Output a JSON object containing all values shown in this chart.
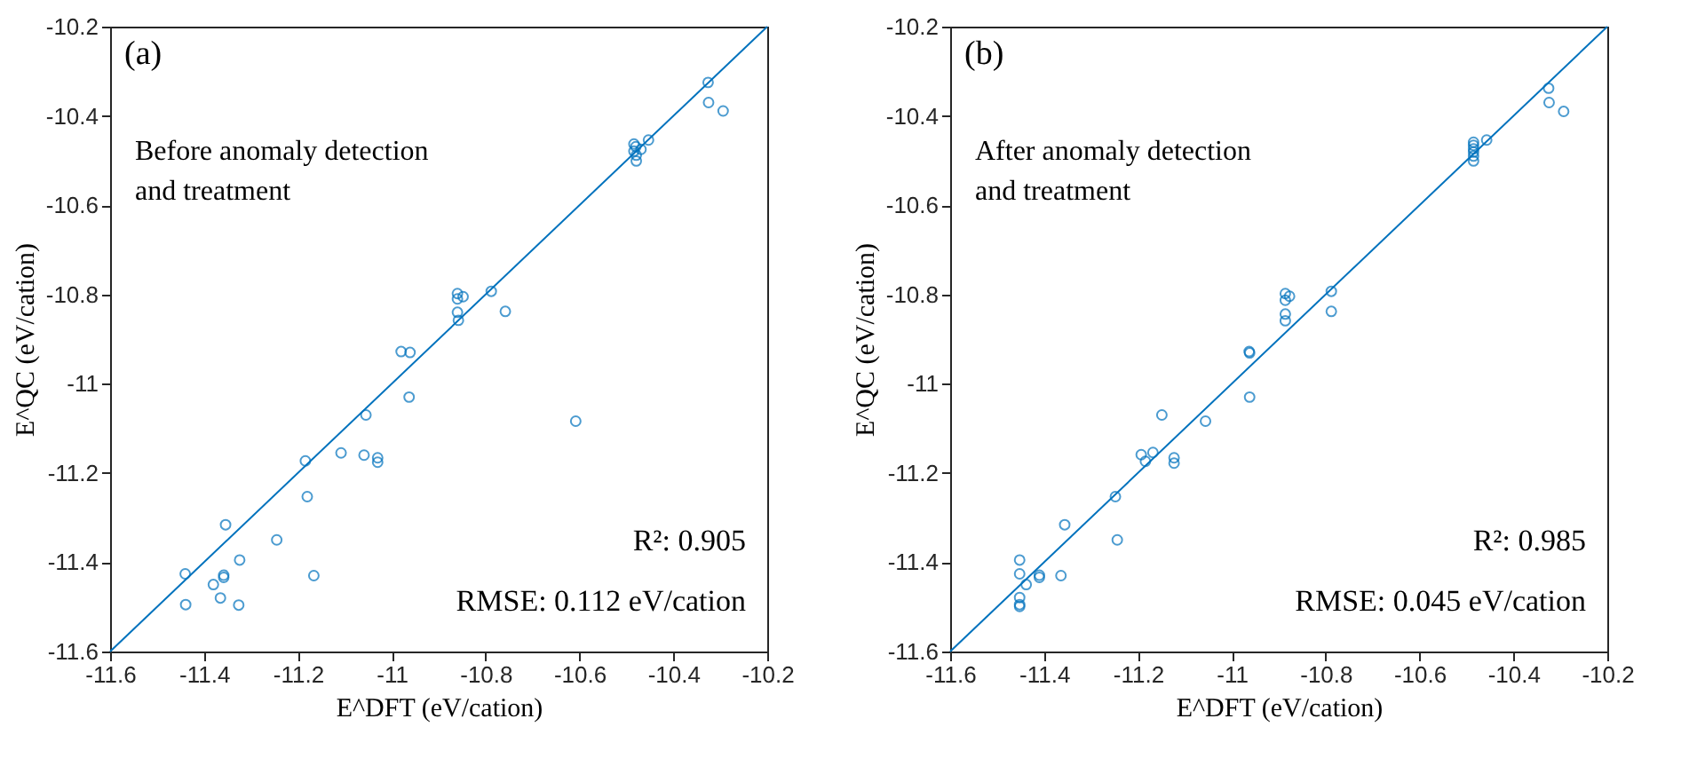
{
  "chart_data": [
    {
      "type": "scatter",
      "xlabel": "E^DFT (eV/cation)",
      "ylabel": "E^QC (eV/cation)",
      "annotations": [
        "(a)",
        "Before anomaly detection\nand treatment",
        "R²: 0.905",
        "RMSE: 0.112 eV/cation"
      ],
      "xlim": [
        -11.6,
        -10.2
      ],
      "ylim": [
        -11.6,
        -10.2
      ],
      "xticks": [
        -11.6,
        -11.4,
        -11.2,
        {
          "value": -11,
          "label": "-11"
        },
        -10.8,
        -10.6,
        -10.4,
        -10.2
      ],
      "yticks": [
        -11.6,
        -11.4,
        -11.2,
        {
          "value": -11,
          "label": "-11"
        },
        -10.8,
        -10.6,
        -10.4,
        -10.2
      ],
      "grid": false,
      "marker": "circle",
      "series": [
        {
          "color": "#0072bd",
          "x": [
            -10.326,
            -10.325,
            -10.294,
            -10.453,
            -10.484,
            -10.48,
            -10.479,
            -10.469,
            -10.479,
            -10.484,
            -10.788,
            -10.758,
            -10.86,
            -10.848,
            -10.86,
            -10.86,
            -10.858,
            -10.98,
            -10.961,
            -10.963,
            -11.055,
            -10.608,
            -11.108,
            -11.059,
            -11.03,
            -11.03,
            -11.184,
            -11.18,
            -11.354,
            -11.245,
            -11.324,
            -11.44,
            -11.358,
            -11.358,
            -11.166,
            -11.38,
            -11.365,
            -11.439,
            -11.326
          ],
          "values": [
            -10.325,
            -10.37,
            -10.389,
            -10.454,
            -10.463,
            -10.469,
            -10.488,
            -10.475,
            -10.501,
            -10.479,
            -10.793,
            -10.838,
            -10.798,
            -10.805,
            -10.81,
            -10.84,
            -10.858,
            -10.928,
            -10.93,
            -11.03,
            -11.07,
            -11.084,
            -11.155,
            -11.16,
            -11.166,
            -11.176,
            -11.173,
            -11.253,
            -11.316,
            -11.35,
            -11.395,
            -11.426,
            -11.429,
            -11.434,
            -11.43,
            -11.45,
            -11.48,
            -11.495,
            -11.496
          ]
        },
        {
          "type": "line",
          "color": "#0072bd",
          "line_style": "solid",
          "marker": "none",
          "x": [
            -11.6,
            -10.2
          ],
          "values": [
            -11.6,
            -10.2
          ]
        }
      ]
    },
    {
      "type": "scatter",
      "xlabel": "E^DFT (eV/cation)",
      "ylabel": "E^QC (eV/cation)",
      "annotations": [
        "(b)",
        "After anomaly detection\nand treatment",
        "R²: 0.985",
        "RMSE: 0.045 eV/cation"
      ],
      "xlim": [
        -11.6,
        -10.2
      ],
      "ylim": [
        -11.6,
        -10.2
      ],
      "xticks": [
        -11.6,
        -11.4,
        -11.2,
        {
          "value": -11,
          "label": "-11"
        },
        -10.8,
        -10.6,
        -10.4,
        -10.2
      ],
      "yticks": [
        -11.6,
        -11.4,
        -11.2,
        {
          "value": -11,
          "label": "-11"
        },
        -10.8,
        -10.6,
        -10.4,
        -10.2
      ],
      "grid": false,
      "marker": "circle",
      "series": [
        {
          "color": "#0072bd",
          "x": [
            -10.325,
            -10.324,
            -10.293,
            -10.457,
            -10.485,
            -10.485,
            -10.485,
            -10.485,
            -10.485,
            -10.485,
            -10.788,
            -10.788,
            -10.886,
            -10.877,
            -10.886,
            -10.886,
            -10.886,
            -10.963,
            -10.962,
            -10.962,
            -11.149,
            -11.056,
            -11.193,
            -11.168,
            -11.184,
            -11.123,
            -11.123,
            -11.248,
            -11.356,
            -11.244,
            -11.452,
            -11.452,
            -11.41,
            -11.41,
            -11.364,
            -11.438,
            -11.452,
            -11.452,
            -11.452
          ],
          "values": [
            -10.338,
            -10.37,
            -10.39,
            -10.454,
            -10.459,
            -10.466,
            -10.474,
            -10.481,
            -10.49,
            -10.501,
            -10.793,
            -10.838,
            -10.798,
            -10.804,
            -10.813,
            -10.844,
            -10.859,
            -10.928,
            -10.931,
            -11.03,
            -11.07,
            -11.084,
            -11.159,
            -11.154,
            -11.174,
            -11.166,
            -11.178,
            -11.253,
            -11.316,
            -11.35,
            -11.395,
            -11.426,
            -11.429,
            -11.434,
            -11.43,
            -11.45,
            -11.479,
            -11.495,
            -11.499
          ]
        },
        {
          "type": "line",
          "color": "#0072bd",
          "line_style": "solid",
          "marker": "none",
          "x": [
            -11.6,
            -10.2
          ],
          "values": [
            -11.6,
            -10.2
          ]
        }
      ]
    }
  ]
}
